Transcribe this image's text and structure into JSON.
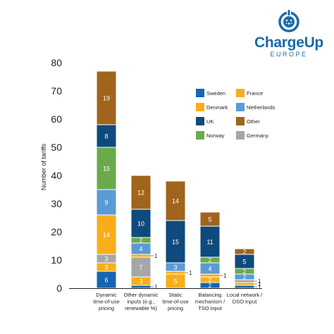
{
  "brand": {
    "name": "ChargeUp",
    "subtitle": "EUROPE",
    "color": "#1a6aa8"
  },
  "chart_data": {
    "type": "bar",
    "stacked": true,
    "ylabel": "Number of tariffs",
    "xlabel": "",
    "ylim": [
      0,
      80
    ],
    "yticks": [
      0,
      10,
      20,
      30,
      40,
      50,
      60,
      70,
      80
    ],
    "grid": false,
    "legend_position": "top-right",
    "categories": [
      "Dynamic time-of-use pricing",
      "Other dynamic inputs (e.g., renewable %)",
      "Static time-of-use pricing",
      "Balancing mechanism / TSO input",
      "Local network / DSO input"
    ],
    "category_lines": [
      [
        "Dynamic",
        "time-of-use",
        "pricing"
      ],
      [
        "Other dynamic",
        "inputs (e.g.,",
        "renewable %)"
      ],
      [
        "Static",
        "time-of-use",
        "pricing"
      ],
      [
        "Balancing",
        "mechanism /",
        "TSO input"
      ],
      [
        "Local network /",
        "DSO input"
      ]
    ],
    "series": [
      {
        "name": "Sweden",
        "color": "#1565b0",
        "values": [
          6,
          1,
          0,
          2,
          1
        ]
      },
      {
        "name": "Denmark",
        "color": "#f7ae1a",
        "values": [
          3,
          3,
          5,
          2,
          1
        ]
      },
      {
        "name": "Norway",
        "color": "#6aaa4b",
        "values": [
          0,
          0,
          0,
          0,
          0
        ]
      },
      {
        "name": "Germany",
        "color": "#a6a6a6",
        "values": [
          3,
          7,
          0,
          0,
          1
        ]
      },
      {
        "name": "France",
        "color": "#f7ae1a",
        "values": [
          14,
          1,
          1,
          1,
          0
        ]
      },
      {
        "name": "Netherlands",
        "color": "#5b9bd5",
        "values": [
          9,
          4,
          3,
          4,
          2
        ]
      },
      {
        "name": "Norway2",
        "color": "#6aaa4b",
        "values": [
          15,
          2,
          0,
          2,
          2
        ]
      },
      {
        "name": "UK",
        "color": "#0e4a7d",
        "values": [
          8,
          10,
          15,
          11,
          5
        ]
      },
      {
        "name": "Other",
        "color": "#a0641c",
        "values": [
          19,
          12,
          14,
          5,
          2
        ]
      }
    ],
    "legend": [
      {
        "name": "Sweden",
        "color": "#1565b0"
      },
      {
        "name": "France",
        "color": "#f7ae1a"
      },
      {
        "name": "Denmark",
        "color": "#f7ae1a"
      },
      {
        "name": "Netherlands",
        "color": "#5b9bd5"
      },
      {
        "name": "UK",
        "color": "#0e4a7d"
      },
      {
        "name": "Other",
        "color": "#a0641c"
      },
      {
        "name": "Norway",
        "color": "#6aaa4b"
      },
      {
        "name": "Germany",
        "color": "#a6a6a6"
      }
    ]
  }
}
